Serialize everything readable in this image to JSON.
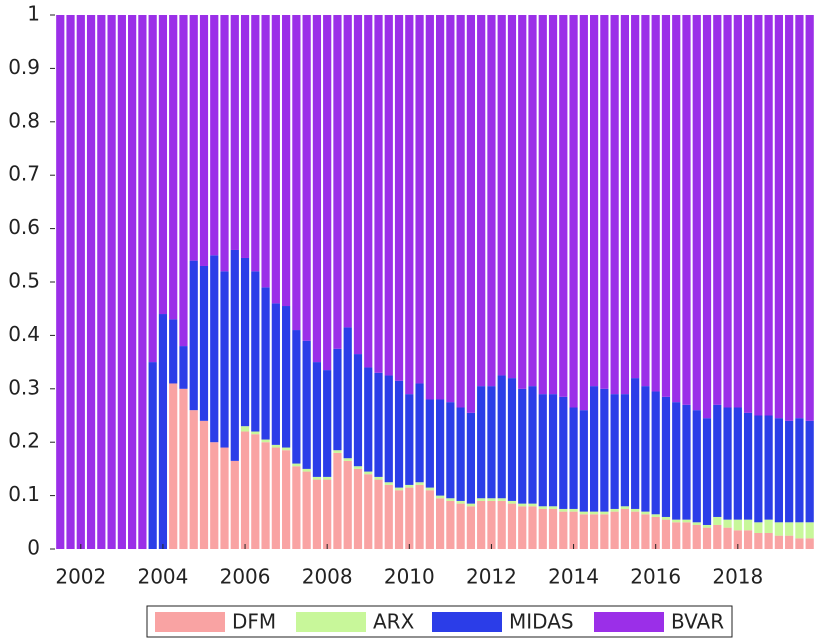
{
  "chart_data": {
    "type": "bar",
    "stacked": true,
    "x": [
      2001.5,
      2001.75,
      2002,
      2002.25,
      2002.5,
      2002.75,
      2003,
      2003.25,
      2003.5,
      2003.75,
      2004,
      2004.25,
      2004.5,
      2004.75,
      2005,
      2005.25,
      2005.5,
      2005.75,
      2006,
      2006.25,
      2006.5,
      2006.75,
      2007,
      2007.25,
      2007.5,
      2007.75,
      2008,
      2008.25,
      2008.5,
      2008.75,
      2009,
      2009.25,
      2009.5,
      2009.75,
      2010,
      2010.25,
      2010.5,
      2010.75,
      2011,
      2011.25,
      2011.5,
      2011.75,
      2012,
      2012.25,
      2012.5,
      2012.75,
      2013,
      2013.25,
      2013.5,
      2013.75,
      2014,
      2014.25,
      2014.5,
      2014.75,
      2015,
      2015.25,
      2015.5,
      2015.75,
      2016,
      2016.25,
      2016.5,
      2016.75,
      2017,
      2017.25,
      2017.5,
      2017.75,
      2018,
      2018.25,
      2018.5,
      2018.75,
      2019,
      2019.25,
      2019.5,
      2019.75
    ],
    "series": [
      {
        "name": "DFM",
        "color": "#f9a3a3",
        "values": [
          0,
          0,
          0,
          0,
          0,
          0,
          0,
          0,
          0,
          0,
          0,
          0.31,
          0.3,
          0.26,
          0.24,
          0.2,
          0.19,
          0.165,
          0.22,
          0.215,
          0.2,
          0.19,
          0.185,
          0.155,
          0.145,
          0.13,
          0.13,
          0.18,
          0.165,
          0.15,
          0.14,
          0.13,
          0.12,
          0.11,
          0.115,
          0.12,
          0.11,
          0.095,
          0.09,
          0.085,
          0.08,
          0.09,
          0.09,
          0.09,
          0.085,
          0.08,
          0.08,
          0.075,
          0.075,
          0.07,
          0.07,
          0.065,
          0.065,
          0.065,
          0.07,
          0.075,
          0.07,
          0.065,
          0.06,
          0.055,
          0.05,
          0.05,
          0.045,
          0.04,
          0.045,
          0.04,
          0.035,
          0.035,
          0.03,
          0.03,
          0.025,
          0.025,
          0.02,
          0.02
        ]
      },
      {
        "name": "ARX",
        "color": "#c8f79a",
        "values": [
          0,
          0,
          0,
          0,
          0,
          0,
          0,
          0,
          0,
          0,
          0,
          0,
          0,
          0,
          0,
          0,
          0,
          0,
          0.01,
          0.005,
          0.005,
          0.005,
          0.005,
          0.005,
          0.005,
          0.005,
          0.005,
          0.005,
          0.005,
          0.005,
          0.005,
          0.005,
          0.005,
          0.005,
          0.005,
          0.005,
          0.005,
          0.005,
          0.005,
          0.005,
          0.005,
          0.005,
          0.005,
          0.005,
          0.005,
          0.005,
          0.005,
          0.005,
          0.005,
          0.005,
          0.005,
          0.005,
          0.005,
          0.005,
          0.005,
          0.005,
          0.005,
          0.005,
          0.005,
          0.005,
          0.005,
          0.005,
          0.005,
          0.005,
          0.015,
          0.015,
          0.02,
          0.02,
          0.02,
          0.025,
          0.025,
          0.025,
          0.03,
          0.03
        ]
      },
      {
        "name": "MIDAS",
        "color": "#2b3de8",
        "values": [
          0,
          0,
          0,
          0,
          0,
          0,
          0,
          0,
          0,
          0.35,
          0.44,
          0.12,
          0.08,
          0.28,
          0.29,
          0.35,
          0.33,
          0.395,
          0.315,
          0.3,
          0.285,
          0.265,
          0.265,
          0.25,
          0.24,
          0.215,
          0.2,
          0.19,
          0.245,
          0.21,
          0.195,
          0.195,
          0.2,
          0.2,
          0.17,
          0.185,
          0.165,
          0.18,
          0.18,
          0.175,
          0.17,
          0.21,
          0.21,
          0.23,
          0.23,
          0.215,
          0.22,
          0.21,
          0.21,
          0.21,
          0.19,
          0.19,
          0.235,
          0.23,
          0.215,
          0.21,
          0.245,
          0.235,
          0.23,
          0.225,
          0.22,
          0.215,
          0.21,
          0.2,
          0.21,
          0.21,
          0.21,
          0.2,
          0.2,
          0.195,
          0.195,
          0.19,
          0.195,
          0.19
        ]
      },
      {
        "name": "BVAR",
        "color": "#9b2fe8",
        "values": [
          1,
          1,
          1,
          1,
          1,
          1,
          1,
          1,
          1,
          0.65,
          0.56,
          0.57,
          0.62,
          0.46,
          0.47,
          0.45,
          0.48,
          0.44,
          0.455,
          0.48,
          0.51,
          0.54,
          0.545,
          0.59,
          0.61,
          0.65,
          0.665,
          0.625,
          0.585,
          0.635,
          0.66,
          0.67,
          0.675,
          0.685,
          0.71,
          0.69,
          0.72,
          0.72,
          0.725,
          0.735,
          0.745,
          0.695,
          0.695,
          0.675,
          0.68,
          0.7,
          0.695,
          0.71,
          0.71,
          0.715,
          0.735,
          0.74,
          0.695,
          0.7,
          0.71,
          0.71,
          0.68,
          0.695,
          0.705,
          0.715,
          0.725,
          0.73,
          0.74,
          0.755,
          0.73,
          0.735,
          0.735,
          0.745,
          0.75,
          0.75,
          0.755,
          0.76,
          0.755,
          0.76
        ]
      }
    ],
    "xlim": [
      2001.25,
      2020.05
    ],
    "xticks": [
      2002,
      2004,
      2006,
      2008,
      2010,
      2012,
      2014,
      2016,
      2018
    ],
    "ylim": [
      0,
      1
    ],
    "yticks": [
      0,
      0.1,
      0.2,
      0.3,
      0.4,
      0.5,
      0.6,
      0.7,
      0.8,
      0.9,
      1
    ],
    "legend": "bottom"
  }
}
